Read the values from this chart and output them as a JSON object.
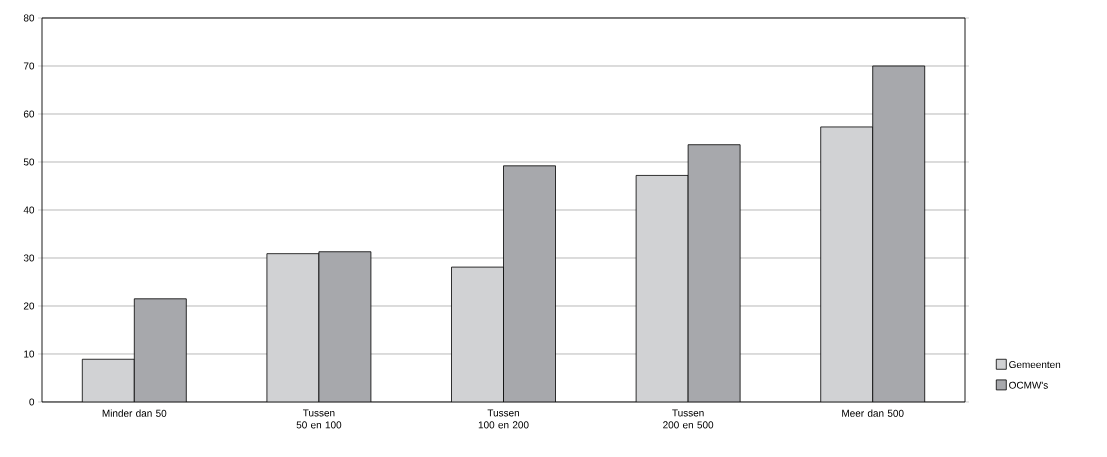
{
  "chart_data": {
    "type": "bar",
    "categories": [
      "Minder dan 50",
      "Tussen 50 en 100",
      "Tussen 100 en 200",
      "Tussen 200 en 500",
      "Meer dan 500"
    ],
    "series": [
      {
        "name": "Gemeenten",
        "color": "#d1d2d4",
        "values": [
          8.9,
          30.9,
          28.1,
          47.2,
          57.3
        ]
      },
      {
        "name": "OCMW's",
        "color": "#a7a8ac",
        "values": [
          21.5,
          31.3,
          49.2,
          53.6,
          70.0
        ]
      }
    ],
    "ylim": [
      0,
      80
    ],
    "yticks": [
      0,
      10,
      20,
      30,
      40,
      50,
      60,
      70,
      80
    ],
    "grid": "y",
    "legend": "right"
  }
}
